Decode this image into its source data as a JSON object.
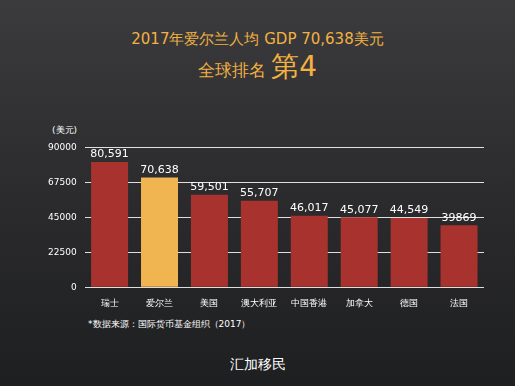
{
  "chart_data": {
    "type": "bar",
    "title": "2017年爱尔兰人均 GDP 70,638美元",
    "subtitle": "全球排名 第4",
    "y_label": "(美元)",
    "source": "*数据来源：国际货币基金组织（2017）",
    "logo_text": "汇加移民",
    "categories": [
      "瑞士",
      "爱尔兰",
      "美国",
      "澳大利亚",
      "中国香港",
      "加拿大",
      "德国",
      "法国"
    ],
    "values": [
      80591,
      70638,
      59501,
      55707,
      46017,
      45077,
      44549,
      39869
    ],
    "value_labels": [
      "80,591",
      "70,638",
      "59,501",
      "55,707",
      "46,017",
      "45,077",
      "44,549",
      "39869"
    ],
    "colors": [
      "#a8332e",
      "#f0b550",
      "#a8332e",
      "#a8332e",
      "#a8332e",
      "#a8332e",
      "#a8332e",
      "#a8332e"
    ],
    "ylim": [
      0,
      90000
    ],
    "yticks": [
      0,
      22500,
      45000,
      67500,
      90000
    ],
    "grid": true,
    "data_labels": true
  }
}
